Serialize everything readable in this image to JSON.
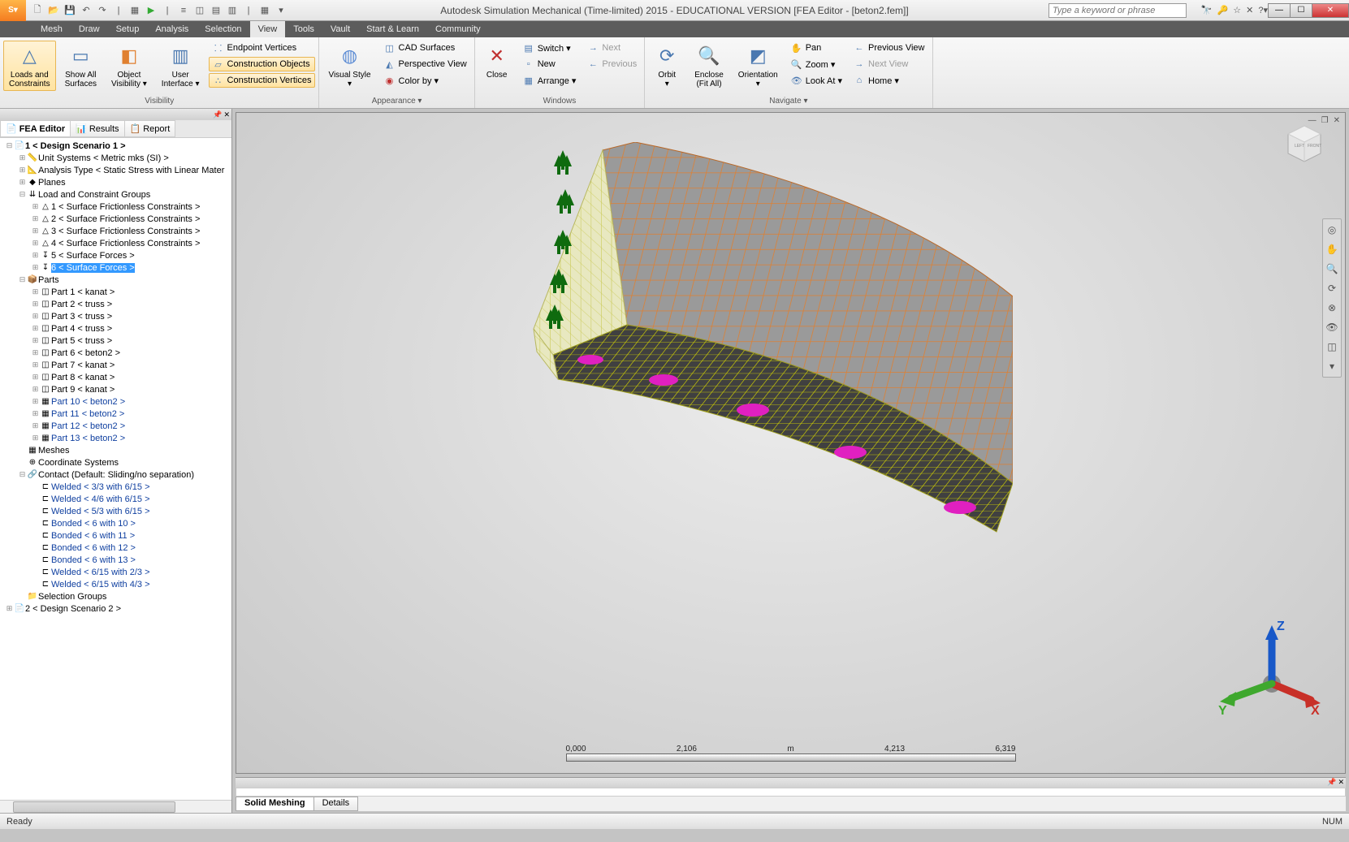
{
  "title": "Autodesk Simulation Mechanical (Time-limited) 2015 - EDUCATIONAL VERSION     [FEA Editor - [beton2.fem]]",
  "search_placeholder": "Type a keyword or phrase",
  "menus": [
    "Mesh",
    "Draw",
    "Setup",
    "Analysis",
    "Selection",
    "View",
    "Tools",
    "Vault",
    "Start & Learn",
    "Community"
  ],
  "active_menu": "View",
  "ribbon": {
    "groups": [
      {
        "label": "Visibility",
        "big": [
          {
            "name": "loads-constraints",
            "label": "Loads and\nConstraints",
            "icon": "△",
            "active": true
          },
          {
            "name": "show-all-surfaces",
            "label": "Show All\nSurfaces",
            "icon": "▭"
          },
          {
            "name": "object-visibility",
            "label": "Object\nVisibility ▾",
            "icon": "◧",
            "color": "#e08030"
          },
          {
            "name": "user-interface",
            "label": "User\nInterface ▾",
            "icon": "▥"
          }
        ],
        "col": [
          {
            "name": "endpoint-vertices",
            "label": "Endpoint Vertices",
            "icon": "⸬"
          },
          {
            "name": "construction-objects",
            "label": "Construction Objects",
            "icon": "▱",
            "active": true
          },
          {
            "name": "construction-vertices",
            "label": "Construction Vertices",
            "icon": "∴",
            "active": true
          }
        ]
      },
      {
        "label": "Appearance ▾",
        "big": [
          {
            "name": "visual-style",
            "label": "Visual Style\n▾",
            "icon": "◍",
            "color": "#5b8bd4"
          }
        ],
        "col": [
          {
            "name": "cad-surfaces",
            "label": "CAD Surfaces",
            "icon": "◫"
          },
          {
            "name": "perspective-view",
            "label": "Perspective View",
            "icon": "◭"
          },
          {
            "name": "color-by",
            "label": "Color by ▾",
            "icon": "◉",
            "color": "#c03030"
          }
        ]
      },
      {
        "label": "Windows",
        "big": [
          {
            "name": "close",
            "label": "Close",
            "icon": "✕",
            "color": "#c03030"
          }
        ],
        "col": [
          {
            "name": "switch",
            "label": "Switch ▾",
            "icon": "▤"
          },
          {
            "name": "new",
            "label": "New",
            "icon": "▫"
          },
          {
            "name": "arrange",
            "label": "Arrange ▾",
            "icon": "▦"
          }
        ],
        "col2": [
          {
            "name": "next",
            "label": "Next",
            "icon": "→",
            "disabled": true
          },
          {
            "name": "previous",
            "label": "Previous",
            "icon": "←",
            "disabled": true
          }
        ]
      },
      {
        "label": "Navigate ▾",
        "big": [
          {
            "name": "orbit",
            "label": "Orbit\n▾",
            "icon": "⟳"
          },
          {
            "name": "enclose",
            "label": "Enclose\n(Fit All)",
            "icon": "🔍"
          },
          {
            "name": "orientation",
            "label": "Orientation\n▾",
            "icon": "◩"
          }
        ],
        "col": [
          {
            "name": "pan",
            "label": "Pan",
            "icon": "✋"
          },
          {
            "name": "zoom",
            "label": "Zoom ▾",
            "icon": "🔍"
          },
          {
            "name": "look-at",
            "label": "Look At ▾",
            "icon": "👁"
          }
        ],
        "col2": [
          {
            "name": "previous-view",
            "label": "Previous View",
            "icon": "←"
          },
          {
            "name": "next-view",
            "label": "Next View",
            "icon": "→",
            "disabled": true
          },
          {
            "name": "home",
            "label": "Home ▾",
            "icon": "⌂"
          }
        ]
      }
    ]
  },
  "panel_tabs": [
    {
      "name": "fea-editor",
      "label": "FEA Editor",
      "icon": "📄",
      "active": true
    },
    {
      "name": "results",
      "label": "Results",
      "icon": "📊"
    },
    {
      "name": "report",
      "label": "Report",
      "icon": "📋"
    }
  ],
  "tree": [
    {
      "d": 0,
      "exp": "-",
      "icon": "📄",
      "label": "1 < Design Scenario 1 >",
      "bold": true
    },
    {
      "d": 1,
      "exp": "+",
      "icon": "📏",
      "label": "Unit Systems < Metric mks (SI) >"
    },
    {
      "d": 1,
      "exp": "+",
      "icon": "📐",
      "label": "Analysis Type < Static Stress with Linear Mater"
    },
    {
      "d": 1,
      "exp": "+",
      "icon": "◆",
      "label": "Planes"
    },
    {
      "d": 1,
      "exp": "-",
      "icon": "⇊",
      "label": "Load and Constraint Groups"
    },
    {
      "d": 2,
      "exp": "+",
      "icon": "△",
      "label": "1 < Surface Frictionless Constraints >"
    },
    {
      "d": 2,
      "exp": "+",
      "icon": "△",
      "label": "2 < Surface Frictionless Constraints >"
    },
    {
      "d": 2,
      "exp": "+",
      "icon": "△",
      "label": "3 < Surface Frictionless Constraints >"
    },
    {
      "d": 2,
      "exp": "+",
      "icon": "△",
      "label": "4 < Surface Frictionless Constraints >"
    },
    {
      "d": 2,
      "exp": "+",
      "icon": "↧",
      "label": "5 < Surface Forces >"
    },
    {
      "d": 2,
      "exp": "+",
      "icon": "↧",
      "label": "6 < Surface Forces >",
      "selected": true
    },
    {
      "d": 1,
      "exp": "-",
      "icon": "📦",
      "label": "Parts"
    },
    {
      "d": 2,
      "exp": "+",
      "icon": "◫",
      "label": "Part 1 < kanat >"
    },
    {
      "d": 2,
      "exp": "+",
      "icon": "◫",
      "label": "Part 2 < truss >"
    },
    {
      "d": 2,
      "exp": "+",
      "icon": "◫",
      "label": "Part 3 < truss >"
    },
    {
      "d": 2,
      "exp": "+",
      "icon": "◫",
      "label": "Part 4 < truss >"
    },
    {
      "d": 2,
      "exp": "+",
      "icon": "◫",
      "label": "Part 5 < truss >"
    },
    {
      "d": 2,
      "exp": "+",
      "icon": "◫",
      "label": "Part 6 < beton2 >"
    },
    {
      "d": 2,
      "exp": "+",
      "icon": "◫",
      "label": "Part 7 < kanat >"
    },
    {
      "d": 2,
      "exp": "+",
      "icon": "◫",
      "label": "Part 8 < kanat >"
    },
    {
      "d": 2,
      "exp": "+",
      "icon": "◫",
      "label": "Part 9 < kanat >"
    },
    {
      "d": 2,
      "exp": "+",
      "icon": "▦",
      "label": "Part 10 < beton2 >",
      "blue": true
    },
    {
      "d": 2,
      "exp": "+",
      "icon": "▦",
      "label": "Part 11 < beton2 >",
      "blue": true
    },
    {
      "d": 2,
      "exp": "+",
      "icon": "▦",
      "label": "Part 12 < beton2 >",
      "blue": true
    },
    {
      "d": 2,
      "exp": "+",
      "icon": "▦",
      "label": "Part 13 < beton2 >",
      "blue": true
    },
    {
      "d": 1,
      "exp": "",
      "icon": "▦",
      "label": "Meshes"
    },
    {
      "d": 1,
      "exp": "",
      "icon": "⊕",
      "label": "Coordinate Systems"
    },
    {
      "d": 1,
      "exp": "-",
      "icon": "🔗",
      "label": "Contact (Default: Sliding/no separation)"
    },
    {
      "d": 2,
      "exp": "",
      "icon": "⊏",
      "label": "Welded < 3/3 with 6/15 >",
      "blue": true
    },
    {
      "d": 2,
      "exp": "",
      "icon": "⊏",
      "label": "Welded < 4/6 with 6/15 >",
      "blue": true
    },
    {
      "d": 2,
      "exp": "",
      "icon": "⊏",
      "label": "Welded < 5/3 with 6/15 >",
      "blue": true
    },
    {
      "d": 2,
      "exp": "",
      "icon": "⊏",
      "label": "Bonded < 6 with 10 >",
      "blue": true
    },
    {
      "d": 2,
      "exp": "",
      "icon": "⊏",
      "label": "Bonded < 6 with 11 >",
      "blue": true
    },
    {
      "d": 2,
      "exp": "",
      "icon": "⊏",
      "label": "Bonded < 6 with 12 >",
      "blue": true
    },
    {
      "d": 2,
      "exp": "",
      "icon": "⊏",
      "label": "Bonded < 6 with 13 >",
      "blue": true
    },
    {
      "d": 2,
      "exp": "",
      "icon": "⊏",
      "label": "Welded < 6/15 with 2/3 >",
      "blue": true
    },
    {
      "d": 2,
      "exp": "",
      "icon": "⊏",
      "label": "Welded < 6/15 with 4/3 >",
      "blue": true
    },
    {
      "d": 1,
      "exp": "",
      "icon": "📁",
      "label": "Selection Groups"
    },
    {
      "d": 0,
      "exp": "+",
      "icon": "📄",
      "label": "2 < Design Scenario 2 >"
    }
  ],
  "output_tabs": [
    {
      "name": "solid-meshing",
      "label": "Solid Meshing",
      "active": true
    },
    {
      "name": "details",
      "label": "Details"
    }
  ],
  "scale": {
    "ticks": [
      "0,000",
      "2,106",
      "m",
      "4,213",
      "6,319"
    ]
  },
  "status": {
    "left": "Ready",
    "right": "NUM"
  },
  "colors": {
    "mesh_back": "#e08030",
    "mesh_base": "#d6d600",
    "mesh_side": "#e5e5a0",
    "arrow_green": "#0f6b0f",
    "disk_magenta": "#e020c0",
    "axis_x": "#c83028",
    "axis_y": "#3fa82e",
    "axis_z": "#1858c8",
    "axis_sphere": "#888"
  }
}
